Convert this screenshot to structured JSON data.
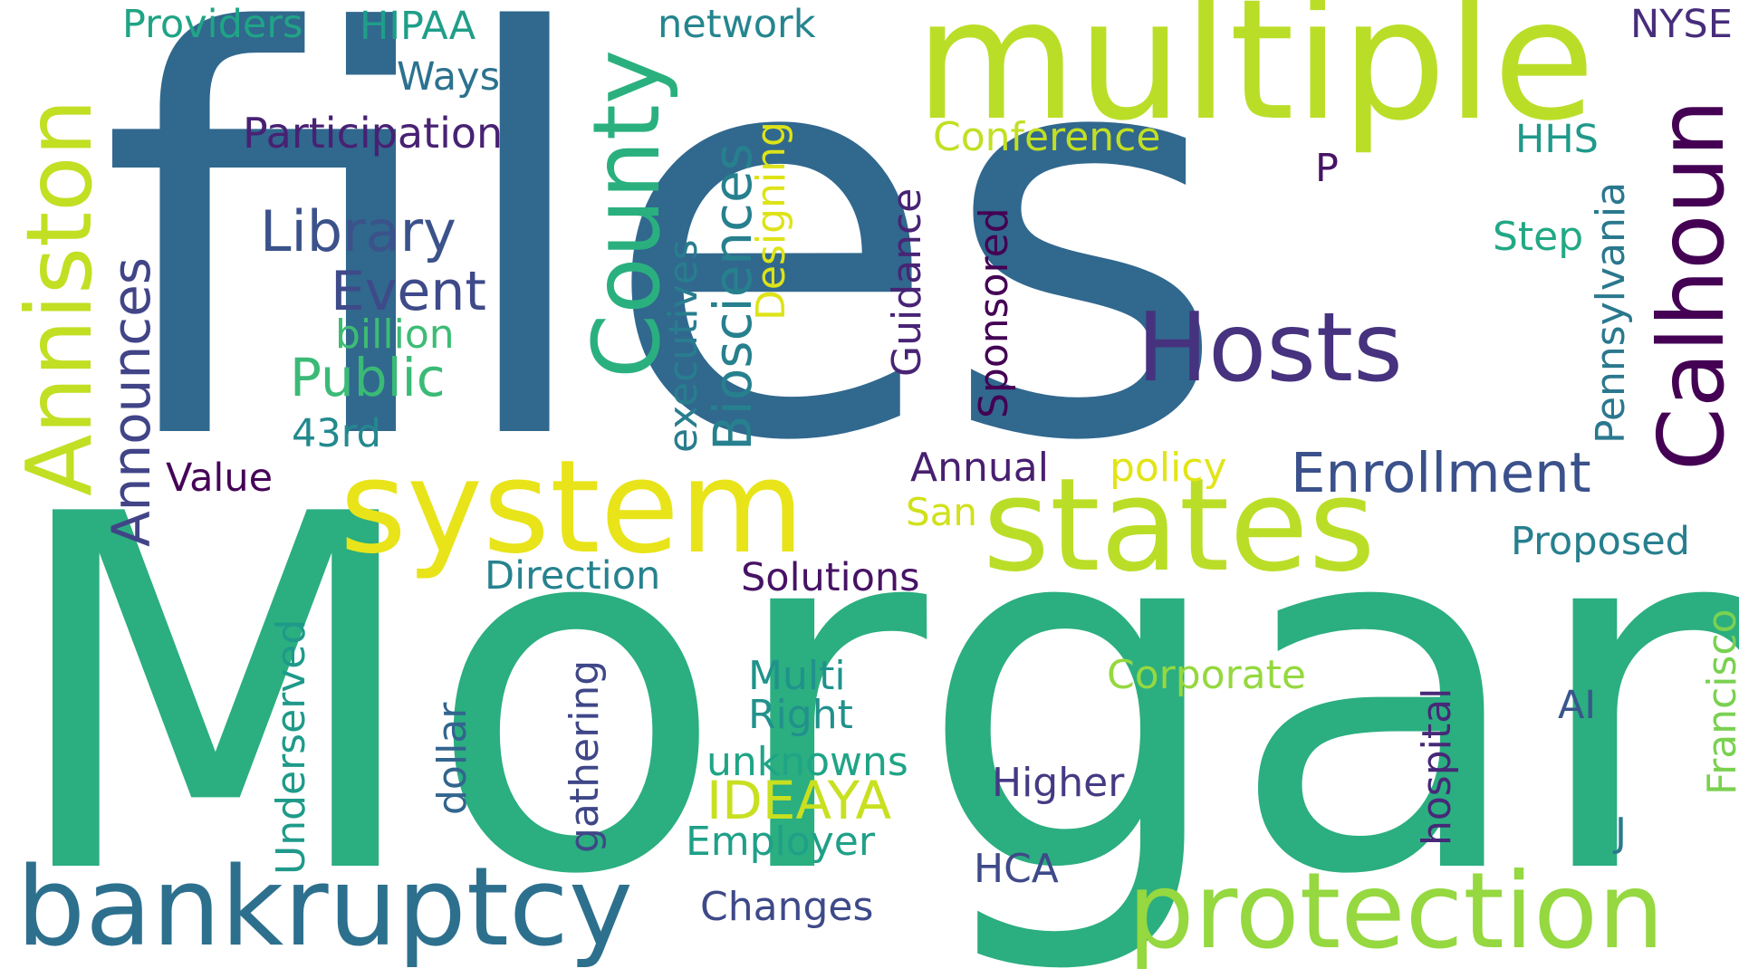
{
  "words": {
    "files": {
      "text": "files",
      "color": "#31688e"
    },
    "morgan": {
      "text": "Morgan",
      "color": "#2bae80"
    },
    "multiple": {
      "text": "multiple",
      "color": "#bade28"
    },
    "states": {
      "text": "states",
      "color": "#bade28"
    },
    "system": {
      "text": "system",
      "color": "#e8e419"
    },
    "bankruptcy": {
      "text": "bankruptcy",
      "color": "#2d708e"
    },
    "protection": {
      "text": "protection",
      "color": "#95d840"
    },
    "hosts": {
      "text": "Hosts",
      "color": "#46327e"
    },
    "anniston": {
      "text": "Anniston",
      "color": "#c2df23"
    },
    "county": {
      "text": "County",
      "color": "#2ab07f"
    },
    "calhoun": {
      "text": "Calhoun",
      "color": "#440154"
    },
    "enrollment": {
      "text": "Enrollment",
      "color": "#3b518b"
    },
    "library": {
      "text": "Library",
      "color": "#3b528b"
    },
    "event": {
      "text": "Event",
      "color": "#3e4a89"
    },
    "public": {
      "text": "Public",
      "color": "#3aba76"
    },
    "biosciences": {
      "text": "Biosciences",
      "color": "#27808e"
    },
    "announces": {
      "text": "Announces",
      "color": "#414487"
    },
    "ideaya": {
      "text": "IDEAYA",
      "color": "#c8e020"
    },
    "participation": {
      "text": "Participation",
      "color": "#482173"
    },
    "conference": {
      "text": "Conference",
      "color": "#c2df23"
    },
    "billion": {
      "text": "billion",
      "color": "#3dbc74"
    },
    "direction": {
      "text": "Direction",
      "color": "#26828e"
    },
    "solutions": {
      "text": "Solutions",
      "color": "#471365"
    },
    "proposed": {
      "text": "Proposed",
      "color": "#277f8e"
    },
    "corporate": {
      "text": "Corporate",
      "color": "#95d840"
    },
    "multi": {
      "text": "Multi",
      "color": "#20928c"
    },
    "right": {
      "text": "Right",
      "color": "#21918c"
    },
    "unknowns": {
      "text": "unknowns",
      "color": "#20a486"
    },
    "employer": {
      "text": "Employer",
      "color": "#1fa088"
    },
    "changes": {
      "text": "Changes",
      "color": "#3e4989"
    },
    "higher": {
      "text": "Higher",
      "color": "#443a83"
    },
    "hca": {
      "text": "HCA",
      "color": "#3e4a89"
    },
    "annual": {
      "text": "Annual",
      "color": "#481f70"
    },
    "policy": {
      "text": "policy",
      "color": "#e2e418"
    },
    "san": {
      "text": "San",
      "color": "#d0e11c"
    },
    "value": {
      "text": "Value",
      "color": "#450457"
    },
    "43rd": {
      "text": "43rd",
      "color": "#23898e"
    },
    "ways": {
      "text": "Ways",
      "color": "#2c728e"
    },
    "providers": {
      "text": "Providers",
      "color": "#20a486"
    },
    "hipaa": {
      "text": "HIPAA",
      "color": "#1f9e89"
    },
    "network": {
      "text": "network",
      "color": "#25858e"
    },
    "nyse": {
      "text": "NYSE",
      "color": "#472d7b"
    },
    "hhs": {
      "text": "HHS",
      "color": "#1f998a"
    },
    "step": {
      "text": "Step",
      "color": "#22a884"
    },
    "p": {
      "text": "P",
      "color": "#481467"
    },
    "ai": {
      "text": "AI",
      "color": "#39568c"
    },
    "j": {
      "text": "J",
      "color": "#2a788e"
    },
    "designing": {
      "text": "Designing",
      "color": "#dde318"
    },
    "executives": {
      "text": "executives",
      "color": "#287d8e"
    },
    "guidance": {
      "text": "Guidance",
      "color": "#482475"
    },
    "sponsored": {
      "text": "Sponsored",
      "color": "#440154"
    },
    "pennsylvania": {
      "text": "Pennsylvania",
      "color": "#2a788e"
    },
    "underserved": {
      "text": "Underserved",
      "color": "#1f9a8a"
    },
    "dollar": {
      "text": "dollar",
      "color": "#32658e"
    },
    "gathering": {
      "text": "gathering",
      "color": "#3f4788"
    },
    "hospital": {
      "text": "hospital",
      "color": "#482878"
    },
    "francisco": {
      "text": "Francisco",
      "color": "#7ad151"
    }
  }
}
